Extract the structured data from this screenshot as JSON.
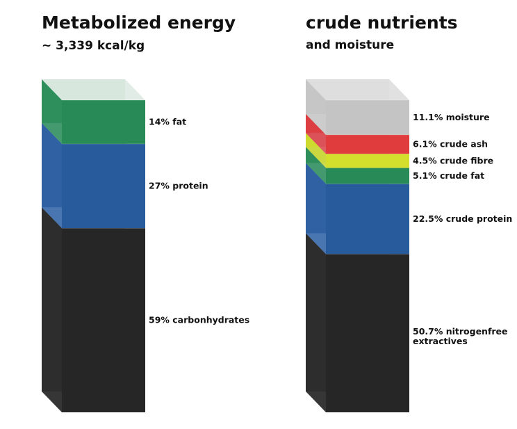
{
  "chart_data": [
    {
      "type": "bar",
      "title": "Metabolized energy",
      "subtitle": "~ 3,339 kcal/kg",
      "unit": "%",
      "segments": [
        {
          "label": "59% carbonhydrates",
          "value": 59,
          "color": "#262626",
          "side": "#363636"
        },
        {
          "label": "27% protein",
          "value": 27,
          "color": "#285b9c",
          "side": "#3a6bab"
        },
        {
          "label": "14% fat",
          "value": 14,
          "color": "#288b57",
          "side": "#359262"
        }
      ],
      "top_color": "#dde9e2"
    },
    {
      "type": "bar",
      "title": "crude nutrients",
      "subtitle": "and moisture",
      "unit": "%",
      "segments": [
        {
          "label": "50.7% nitrogenfree extractives",
          "label_lines": [
            "50.7% nitrogenfree",
            "extractives"
          ],
          "value": 50.7,
          "color": "#262626",
          "side": "#363636"
        },
        {
          "label": "22.5% crude protein",
          "value": 22.5,
          "color": "#285b9c",
          "side": "#3a6bab"
        },
        {
          "label": "5.1% crude fat",
          "value": 5.1,
          "color": "#288b57",
          "side": "#359262"
        },
        {
          "label": "4.5% crude fibre",
          "value": 4.5,
          "color": "#d3df2c",
          "side": "#c8d530"
        },
        {
          "label": "6.1% crude ash",
          "value": 6.1,
          "color": "#e03b3d",
          "side": "#d8444a"
        },
        {
          "label": "11.1% moisture",
          "value": 11.1,
          "color": "#c4c4c4",
          "side": "#c8c8c8"
        }
      ],
      "top_color": "#dcdcdc"
    }
  ]
}
